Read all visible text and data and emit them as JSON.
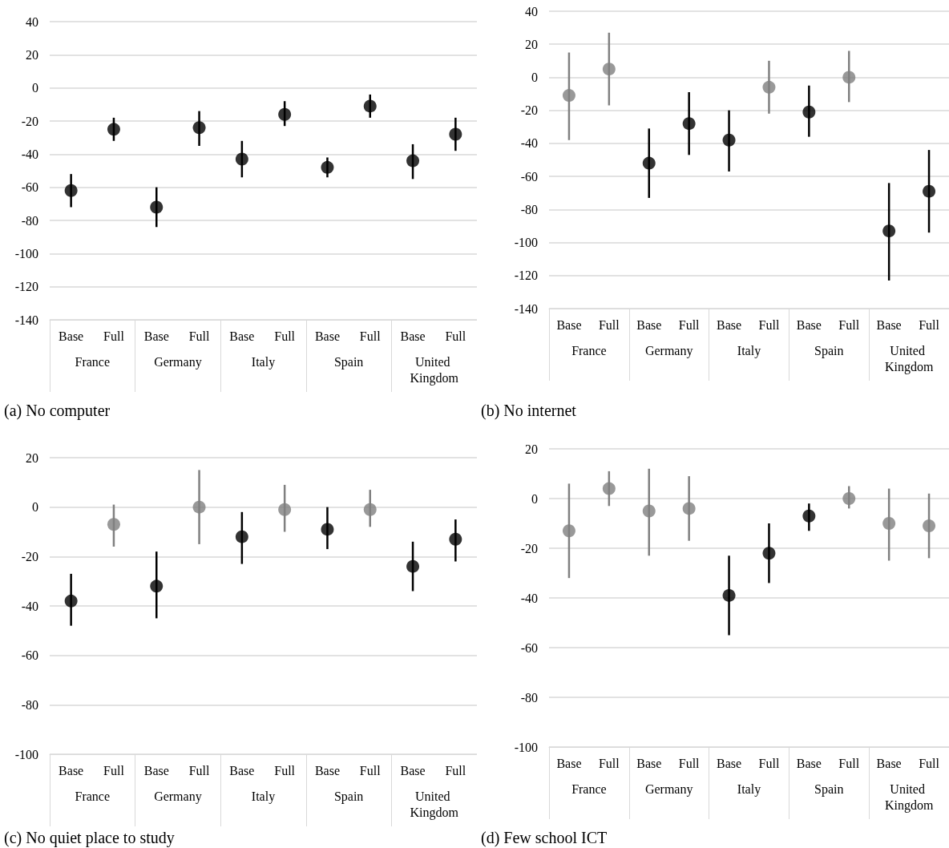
{
  "chart_data": [
    {
      "type": "scatter",
      "title": "(a) No computer",
      "categories": [
        "Base",
        "Full",
        "Base",
        "Full",
        "Base",
        "Full",
        "Base",
        "Full",
        "Base",
        "Full"
      ],
      "values": [
        -62,
        -25,
        -72,
        -24,
        -43,
        -16,
        -48,
        -11,
        -44,
        -28
      ],
      "errors": [
        [
          -72,
          -52
        ],
        [
          -32,
          -18
        ],
        [
          -84,
          -60
        ],
        [
          -35,
          -14
        ],
        [
          -54,
          -32
        ],
        [
          -23,
          -8
        ],
        [
          -54,
          -42
        ],
        [
          -18,
          -4
        ],
        [
          -55,
          -34
        ],
        [
          -38,
          -18
        ]
      ],
      "colors": [
        "#000000",
        "#000000",
        "#000000",
        "#000000",
        "#000000",
        "#000000",
        "#000000",
        "#000000",
        "#000000",
        "#000000"
      ],
      "annotations": [
        "France",
        "Germany",
        "Italy",
        "Spain",
        "United Kingdom"
      ],
      "ylim": [
        -140,
        40
      ],
      "yticks": [
        -140,
        -120,
        -100,
        -80,
        -60,
        -40,
        -20,
        0,
        20,
        40
      ],
      "grid": "y",
      "marker": "circle"
    },
    {
      "type": "scatter",
      "title": "(b) No internet",
      "categories": [
        "Base",
        "Full",
        "Base",
        "Full",
        "Base",
        "Full",
        "Base",
        "Full",
        "Base",
        "Full"
      ],
      "values": [
        -11,
        5,
        -52,
        -28,
        -38,
        -6,
        -21,
        0,
        -93,
        -69
      ],
      "errors": [
        [
          -38,
          15
        ],
        [
          -17,
          27
        ],
        [
          -73,
          -31
        ],
        [
          -47,
          -9
        ],
        [
          -57,
          -20
        ],
        [
          -22,
          10
        ],
        [
          -36,
          -5
        ],
        [
          -15,
          16
        ],
        [
          -123,
          -64
        ],
        [
          -94,
          -44
        ]
      ],
      "colors": [
        "#808080",
        "#808080",
        "#000000",
        "#000000",
        "#000000",
        "#808080",
        "#000000",
        "#808080",
        "#000000",
        "#000000"
      ],
      "annotations": [
        "France",
        "Germany",
        "Italy",
        "Spain",
        "United Kingdom"
      ],
      "ylim": [
        -140,
        40
      ],
      "yticks": [
        -140,
        -120,
        -100,
        -80,
        -60,
        -40,
        -20,
        0,
        20,
        40
      ],
      "grid": "y",
      "marker": "circle"
    },
    {
      "type": "scatter",
      "title": "(c) No quiet place to study",
      "categories": [
        "Base",
        "Full",
        "Base",
        "Full",
        "Base",
        "Full",
        "Base",
        "Full",
        "Base",
        "Full"
      ],
      "values": [
        -38,
        -7,
        -32,
        0,
        -12,
        -1,
        -9,
        -1,
        -24,
        -13
      ],
      "errors": [
        [
          -48,
          -27
        ],
        [
          -16,
          1
        ],
        [
          -45,
          -18
        ],
        [
          -15,
          15
        ],
        [
          -23,
          -2
        ],
        [
          -10,
          9
        ],
        [
          -17,
          0
        ],
        [
          -8,
          7
        ],
        [
          -34,
          -14
        ],
        [
          -22,
          -5
        ]
      ],
      "colors": [
        "#000000",
        "#808080",
        "#000000",
        "#808080",
        "#000000",
        "#808080",
        "#000000",
        "#808080",
        "#000000",
        "#000000"
      ],
      "annotations": [
        "France",
        "Germany",
        "Italy",
        "Spain",
        "United Kingdom"
      ],
      "ylim": [
        -100,
        20
      ],
      "yticks": [
        -100,
        -80,
        -60,
        -40,
        -20,
        0,
        20
      ],
      "grid": "y",
      "marker": "circle"
    },
    {
      "type": "scatter",
      "title": "(d) Few school ICT",
      "categories": [
        "Base",
        "Full",
        "Base",
        "Full",
        "Base",
        "Full",
        "Base",
        "Full",
        "Base",
        "Full"
      ],
      "values": [
        -13,
        4,
        -5,
        -4,
        -39,
        -22,
        -7,
        0,
        -10,
        -11
      ],
      "errors": [
        [
          -32,
          6
        ],
        [
          -3,
          11
        ],
        [
          -23,
          12
        ],
        [
          -17,
          9
        ],
        [
          -55,
          -23
        ],
        [
          -34,
          -10
        ],
        [
          -13,
          -2
        ],
        [
          -4,
          5
        ],
        [
          -25,
          4
        ],
        [
          -24,
          2
        ]
      ],
      "colors": [
        "#808080",
        "#808080",
        "#808080",
        "#808080",
        "#000000",
        "#000000",
        "#000000",
        "#808080",
        "#808080",
        "#808080"
      ],
      "annotations": [
        "France",
        "Germany",
        "Italy",
        "Spain",
        "United Kingdom"
      ],
      "ylim": [
        -100,
        20
      ],
      "yticks": [
        -100,
        -80,
        -60,
        -40,
        -20,
        0,
        20
      ],
      "grid": "y",
      "marker": "circle"
    }
  ]
}
